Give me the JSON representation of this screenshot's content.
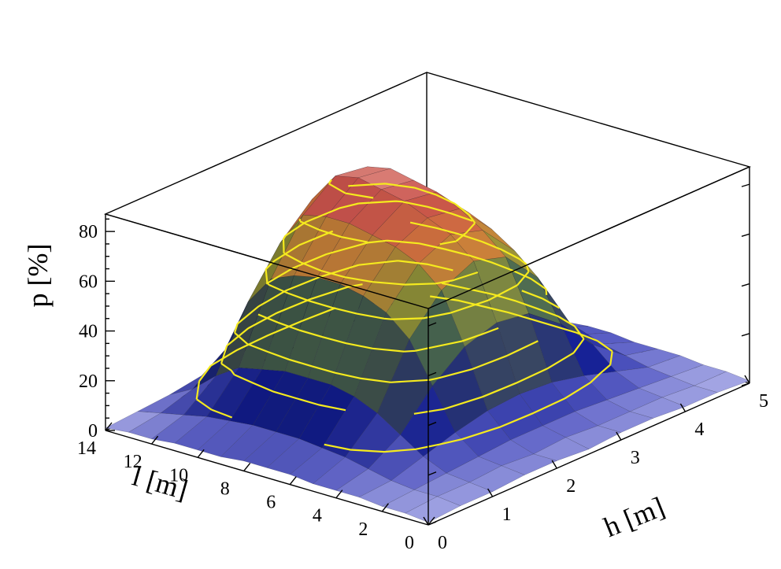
{
  "chart_data": {
    "type": "surface3d",
    "title": "",
    "x_axis": {
      "label": "h [m]",
      "range": [
        0,
        5
      ],
      "ticks": [
        "0",
        "1",
        "2",
        "3",
        "4",
        "5"
      ]
    },
    "y_axis": {
      "label": "l [m]",
      "range": [
        0,
        14
      ],
      "ticks": [
        "0",
        "2",
        "4",
        "6",
        "8",
        "10",
        "12",
        "14"
      ]
    },
    "z_axis": {
      "label": "p [%]",
      "range": [
        0,
        87
      ],
      "ticks": [
        "0",
        "20",
        "40",
        "60",
        "80"
      ]
    },
    "h": [
      0,
      0.5,
      1,
      1.5,
      2,
      2.5,
      3,
      3.5,
      4,
      4.5,
      5
    ],
    "l": [
      0,
      1,
      2,
      3,
      4,
      5,
      6,
      7,
      8,
      9,
      10,
      11,
      12,
      13,
      14
    ],
    "p": [
      [
        1,
        2,
        2,
        3,
        3,
        2,
        3,
        3,
        2,
        2,
        1
      ],
      [
        2,
        3,
        3,
        4,
        3,
        4,
        3,
        3,
        3,
        2,
        2
      ],
      [
        2,
        3,
        4,
        5,
        6,
        6,
        6,
        5,
        4,
        3,
        2
      ],
      [
        3,
        4,
        8,
        12,
        15,
        16,
        15,
        12,
        8,
        4,
        3
      ],
      [
        3,
        6,
        14,
        28,
        38,
        42,
        40,
        30,
        16,
        6,
        3
      ],
      [
        3,
        8,
        20,
        44,
        58,
        64,
        60,
        46,
        22,
        8,
        3
      ],
      [
        4,
        9,
        24,
        52,
        66,
        72,
        68,
        54,
        26,
        9,
        4
      ],
      [
        4,
        10,
        26,
        56,
        70,
        76,
        74,
        60,
        28,
        9,
        4
      ],
      [
        4,
        10,
        26,
        58,
        72,
        80,
        78,
        64,
        30,
        9,
        3
      ],
      [
        3,
        10,
        26,
        58,
        74,
        82,
        80,
        66,
        30,
        9,
        3
      ],
      [
        3,
        9,
        24,
        56,
        74,
        84,
        82,
        66,
        28,
        8,
        3
      ],
      [
        3,
        8,
        22,
        52,
        72,
        82,
        80,
        62,
        26,
        7,
        3
      ],
      [
        2,
        6,
        16,
        40,
        58,
        70,
        68,
        50,
        20,
        5,
        2
      ],
      [
        2,
        4,
        8,
        18,
        28,
        34,
        32,
        24,
        10,
        4,
        2
      ],
      [
        1,
        2,
        3,
        5,
        7,
        8,
        7,
        6,
        4,
        2,
        1
      ]
    ],
    "contour_levels": [
      10,
      20,
      30,
      40,
      50,
      60,
      70,
      80
    ],
    "colormap": [
      "#c4c6f2",
      "#5c60c4",
      "#101a86",
      "#3c4a4c",
      "#44604a",
      "#8a8a34",
      "#cc7838",
      "#c4504a",
      "#ecb0a6"
    ],
    "contour_color": "#f5ea1e",
    "grid": false
  }
}
